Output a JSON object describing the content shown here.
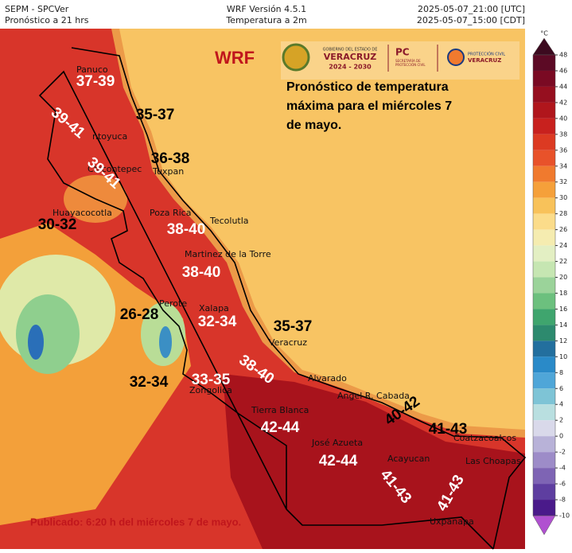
{
  "header": {
    "left": [
      "SEPM - SPCVer",
      "Pronóstico a 21 hrs"
    ],
    "center": [
      "WRF Versión 4.5.1",
      "Temperatura a 2m"
    ],
    "right": [
      "2025-05-07_21:00 [UTC]",
      "2025-05-07_15:00 [CDT]"
    ]
  },
  "model": "WRF",
  "logos": {
    "government": [
      "GOBIERNO DEL ESTADO DE",
      "VERACRUZ",
      "2024 - 2030"
    ],
    "pc": [
      "PC",
      "SECRETARÍA DE",
      "PROTECCIÓN CIVIL"
    ],
    "protection": [
      "PROTECCIÓN CIVIL",
      "VERACRUZ"
    ]
  },
  "description": [
    "Pronóstico de temperatura",
    "máxima para el miércoles 7",
    "de mayo."
  ],
  "places": [
    "Panuco",
    "ntoyuca",
    "Chicontepec",
    "Tuxpan",
    "Huayacocotla",
    "Poza Rica",
    "Tecolutla",
    "Martinez de la Torre",
    "Perote",
    "Xalapa",
    "Veracruz",
    "Alvarado",
    "Zongolica",
    "Tierra Blanca",
    "Angel R. Cabada",
    "José Azueta",
    "Acayucan",
    "Coatzacoalcos",
    "Las Choapas",
    "Uxpanapa"
  ],
  "ranges": [
    "37-39",
    "35-37",
    "39-41",
    "36-38",
    "39-41",
    "30-32",
    "38-40",
    "38-40",
    "26-28",
    "32-34",
    "35-37",
    "38-40",
    "32-34",
    "33-35",
    "40-42",
    "41-43",
    "42-44",
    "42-44",
    "41-43",
    "41-43"
  ],
  "footer": "Publicado: 6:20 h del miércoles 7 de mayo.",
  "colorbar": {
    "unit": "°C",
    "ticks": [
      48,
      46,
      44,
      42,
      40,
      38,
      36,
      34,
      32,
      30,
      28,
      26,
      24,
      22,
      20,
      18,
      16,
      14,
      12,
      10,
      8,
      6,
      4,
      2,
      0,
      -2,
      -4,
      -6,
      -8,
      -10
    ],
    "colors": [
      "#5c0a25",
      "#7a0a23",
      "#960f1f",
      "#b0161c",
      "#c8211e",
      "#dc3a22",
      "#e8522a",
      "#f07a2e",
      "#f5a03a",
      "#f8c25a",
      "#fbdc8a",
      "#f5ecb0",
      "#e3efc3",
      "#c6e6b2",
      "#9bd39a",
      "#6cc07e",
      "#3fa56e",
      "#2d8a6e",
      "#236f9e",
      "#2a8ac8",
      "#4fa6d8",
      "#7ec4d6",
      "#b9dfe0",
      "#d9d9ea",
      "#b8b2d8",
      "#9d8cc8",
      "#7e64b4",
      "#5e3ea0",
      "#4a1a8a"
    ]
  }
}
